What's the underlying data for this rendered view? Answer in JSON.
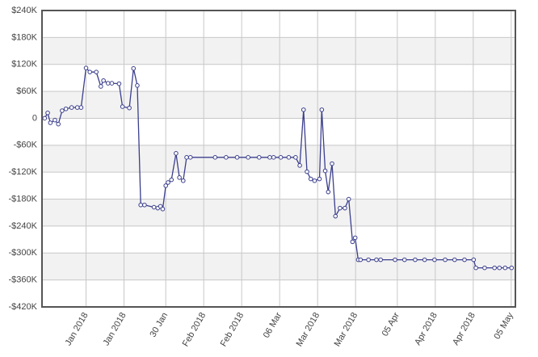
{
  "chart_data": {
    "type": "line",
    "x": [
      -1.9,
      -1.1,
      -0.4,
      0.8,
      1.7,
      2.7,
      3.7,
      5.2,
      6.7,
      7.7,
      9.0,
      10.0,
      11.7,
      12.9,
      13.6,
      14.8,
      15.8,
      17.7,
      18.6,
      20.4,
      21.5,
      22.5,
      23.4,
      24.4,
      26.9,
      27.9,
      28.6,
      29.2,
      30.0,
      30.6,
      31.5,
      32.7,
      33.6,
      34.6,
      35.5,
      36.5,
      43.0,
      45.9,
      48.8,
      51.7,
      54.6,
      57.4,
      58.4,
      60.3,
      62.4,
      64.2,
      65.3,
      66.3,
      67.2,
      68.2,
      69.2,
      70.5,
      71.1,
      72.0,
      72.8,
      73.8,
      74.7,
      75.9,
      77.2,
      78.2,
      79.2,
      79.9,
      80.7,
      81.3,
      83.4,
      85.5,
      86.6,
      90.4,
      92.9,
      95.7,
      98.2,
      100.8,
      103.6,
      106.1,
      108.7,
      111.1,
      111.7,
      114.0,
      116.6,
      117.9,
      119.4,
      121.1
    ],
    "series": [
      {
        "color": "#3b3f8c",
        "values": [
          0,
          12000,
          -10000,
          -4000,
          -13000,
          17000,
          21000,
          24000,
          24000,
          24000,
          112000,
          103000,
          103000,
          71000,
          84000,
          78000,
          78000,
          77000,
          26000,
          23000,
          111000,
          73000,
          -193000,
          -193000,
          -198000,
          -200000,
          -196000,
          -202000,
          -150000,
          -143000,
          -137000,
          -78000,
          -132000,
          -139000,
          -87000,
          -87000,
          -87000,
          -87000,
          -87000,
          -87000,
          -87000,
          -87000,
          -87000,
          -87000,
          -87000,
          -87000,
          -105000,
          19000,
          -119000,
          -135000,
          -139000,
          -135000,
          19000,
          -117000,
          -164000,
          -101000,
          -218000,
          -200000,
          -200000,
          -180000,
          -275000,
          -266000,
          -315000,
          -315000,
          -315000,
          -315000,
          -315000,
          -315000,
          -315000,
          -315000,
          -315000,
          -315000,
          -315000,
          -315000,
          -315000,
          -315000,
          -333000,
          -333000,
          -333000,
          -333000,
          -333000,
          -333000
        ]
      }
    ],
    "ylim": [
      -420000,
      240000
    ],
    "yticks": [
      {
        "value": -420000,
        "label": "-$420K"
      },
      {
        "value": -360000,
        "label": "-$360K"
      },
      {
        "value": -300000,
        "label": "-$300K"
      },
      {
        "value": -240000,
        "label": "-$240K"
      },
      {
        "value": -180000,
        "label": "-$180K"
      },
      {
        "value": -120000,
        "label": "-$120K"
      },
      {
        "value": -60000,
        "label": "-$60K"
      },
      0,
      {
        "value": 60000,
        "label": "$60K"
      },
      {
        "value": 120000,
        "label": "$120K"
      },
      {
        "value": 180000,
        "label": "$180K"
      },
      {
        "value": 240000,
        "label": "$240K"
      }
    ],
    "xlim": [
      -2.6,
      122.1
    ],
    "xticks": [
      {
        "value": 9,
        "label": "Jan 2018"
      },
      {
        "value": 19,
        "label": "Jan 2018"
      },
      {
        "value": 30,
        "label": "30 Jan"
      },
      {
        "value": 40,
        "label": "Feb 2018"
      },
      {
        "value": 50,
        "label": "Feb 2018"
      },
      {
        "value": 60,
        "label": "06 Mar"
      },
      {
        "value": 70,
        "label": "Mar 2018"
      },
      {
        "value": 80,
        "label": "Mar 2018"
      },
      {
        "value": 91,
        "label": "05 Apr"
      },
      {
        "value": 101,
        "label": "Apr 2018"
      },
      {
        "value": 111,
        "label": "Apr 2018"
      },
      {
        "value": 121,
        "label": "05 May"
      }
    ],
    "grid": true
  }
}
